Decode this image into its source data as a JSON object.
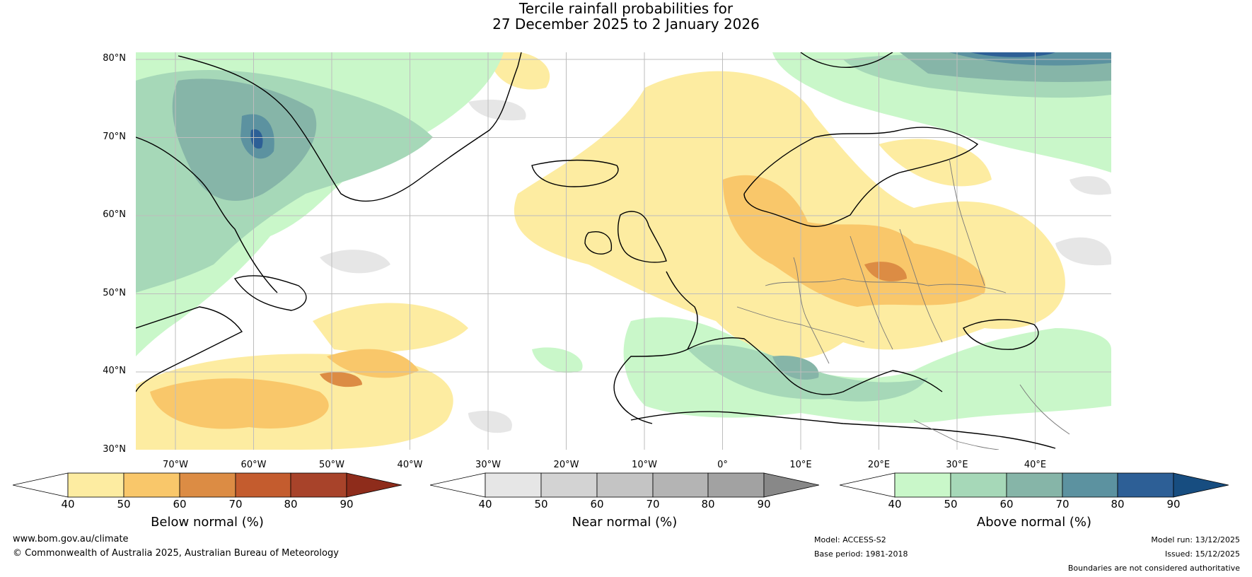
{
  "title": {
    "line1": "Tercile rainfall probabilities for",
    "line2": "27 December 2025 to 2 January 2026"
  },
  "map": {
    "lat_labels": [
      "80°N",
      "70°N",
      "60°N",
      "50°N",
      "40°N",
      "30°N"
    ],
    "lon_labels": [
      "70°W",
      "60°W",
      "50°W",
      "40°W",
      "30°W",
      "20°W",
      "10°W",
      "0°",
      "10°E",
      "20°E",
      "30°E",
      "40°E"
    ]
  },
  "colorbars": [
    {
      "label": "Below normal (%)",
      "ticks": [
        "40",
        "50",
        "60",
        "70",
        "80",
        "90"
      ],
      "colors": [
        "#ffffff",
        "#fdeca1",
        "#f9c76a",
        "#dc8c44",
        "#c45c2e",
        "#a8432a",
        "#8e2c1b"
      ]
    },
    {
      "label": "Near normal (%)",
      "ticks": [
        "40",
        "50",
        "60",
        "70",
        "80",
        "90"
      ],
      "colors": [
        "#ffffff",
        "#e6e6e6",
        "#d3d3d3",
        "#c4c4c4",
        "#b4b4b4",
        "#a2a2a2",
        "#888888"
      ]
    },
    {
      "label": "Above normal (%)",
      "ticks": [
        "40",
        "50",
        "60",
        "70",
        "80",
        "90"
      ],
      "colors": [
        "#ffffff",
        "#c9f7c9",
        "#a6d8b8",
        "#86b5a8",
        "#5c92a0",
        "#2d5f96",
        "#174d80"
      ]
    }
  ],
  "footer": {
    "url": "www.bom.gov.au/climate",
    "copyright": "© Commonwealth of Australia 2025, Australian Bureau of Meteorology",
    "model": "Model: ACCESS-S2",
    "base_period": "Base period: 1981-2018",
    "model_run": "Model run: 13/12/2025",
    "issued": "Issued: 15/12/2025",
    "disclaimer": "Boundaries are not considered authoritative"
  }
}
